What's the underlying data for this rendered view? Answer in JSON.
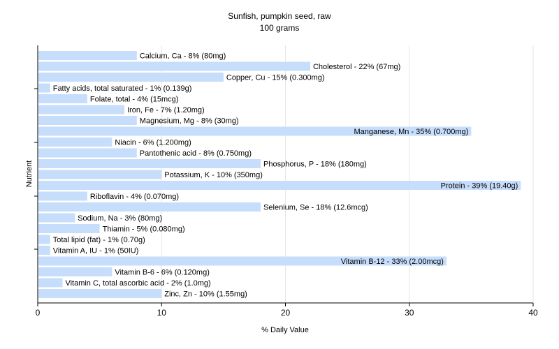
{
  "chart_data": {
    "type": "bar",
    "orientation": "horizontal",
    "title": "Sunfish, pumpkin seed, raw",
    "subtitle": "100 grams",
    "xlabel": "% Daily Value",
    "ylabel": "Nutrient",
    "xlim": [
      0,
      40
    ],
    "xticks": [
      "0",
      "10",
      "20",
      "30",
      "40"
    ],
    "grid": true,
    "bar_color": "#c6ddfb",
    "categories": [
      "Calcium, Ca",
      "Cholesterol",
      "Copper, Cu",
      "Fatty acids, total saturated",
      "Folate, total",
      "Iron, Fe",
      "Magnesium, Mg",
      "Manganese, Mn",
      "Niacin",
      "Pantothenic acid",
      "Phosphorus, P",
      "Potassium, K",
      "Protein",
      "Riboflavin",
      "Selenium, Se",
      "Sodium, Na",
      "Thiamin",
      "Total lipid (fat)",
      "Vitamin A, IU",
      "Vitamin B-12",
      "Vitamin B-6",
      "Vitamin C, total ascorbic acid",
      "Zinc, Zn"
    ],
    "values": [
      8,
      22,
      15,
      1,
      4,
      7,
      8,
      35,
      6,
      8,
      18,
      10,
      39,
      4,
      18,
      3,
      5,
      1,
      1,
      33,
      6,
      2,
      10
    ],
    "labels": [
      "Calcium, Ca - 8% (80mg)",
      "Cholesterol - 22% (67mg)",
      "Copper, Cu - 15% (0.300mg)",
      "Fatty acids, total saturated - 1% (0.139g)",
      "Folate, total - 4% (15mcg)",
      "Iron, Fe - 7% (1.20mg)",
      "Magnesium, Mg - 8% (30mg)",
      "Manganese, Mn - 35% (0.700mg)",
      "Niacin - 6% (1.200mg)",
      "Pantothenic acid - 8% (0.750mg)",
      "Phosphorus, P - 18% (180mg)",
      "Potassium, K - 10% (350mg)",
      "Protein - 39% (19.40g)",
      "Riboflavin - 4% (0.070mg)",
      "Selenium, Se - 18% (12.6mcg)",
      "Sodium, Na - 3% (80mg)",
      "Thiamin - 5% (0.080mg)",
      "Total lipid (fat) - 1% (0.70g)",
      "Vitamin A, IU - 1% (50IU)",
      "Vitamin B-12 - 33% (2.00mcg)",
      "Vitamin B-6 - 6% (0.120mg)",
      "Vitamin C, total ascorbic acid - 2% (1.0mg)",
      "Zinc, Zn - 10% (1.55mg)"
    ],
    "inside_label_indices": [
      7,
      12,
      19
    ]
  }
}
